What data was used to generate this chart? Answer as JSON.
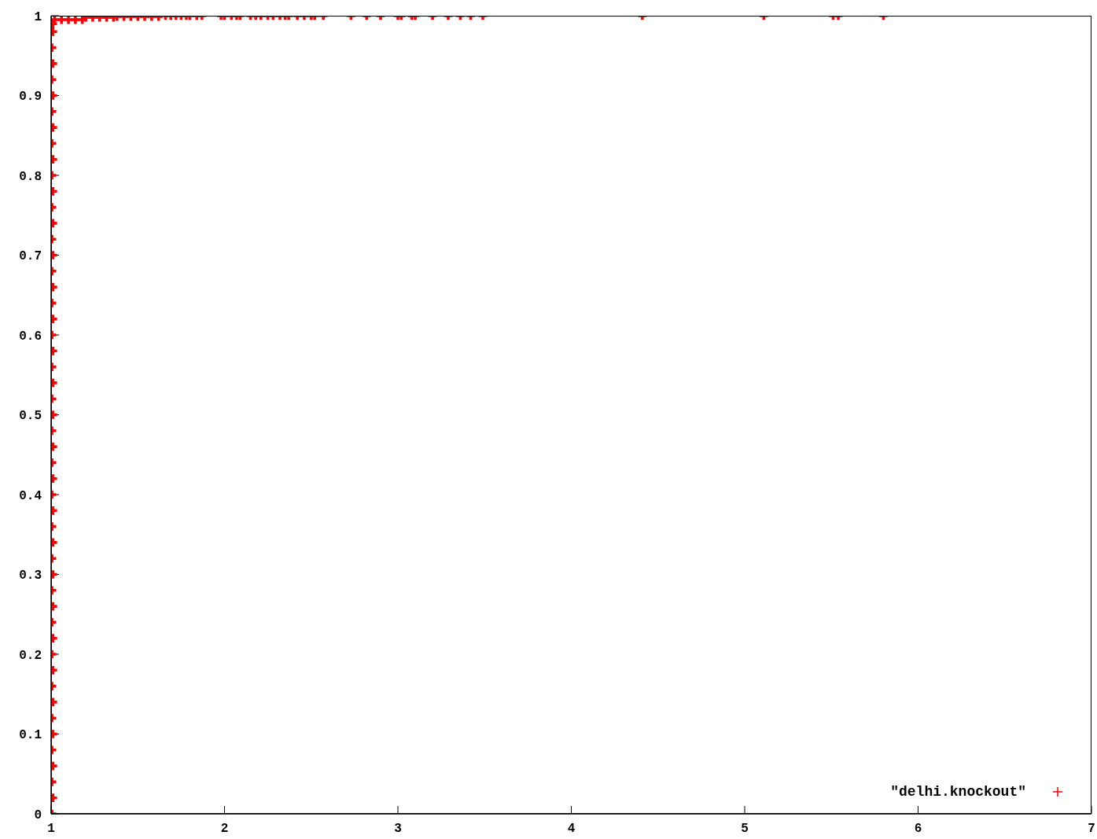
{
  "chart_data": {
    "type": "scatter",
    "xlim": [
      1,
      7
    ],
    "xticks": [
      1,
      2,
      3,
      4,
      5,
      6,
      7
    ],
    "ylim": [
      0,
      1
    ],
    "yticks": [
      0,
      0.1,
      0.2,
      0.3,
      0.4,
      0.5,
      0.6,
      0.7,
      0.8,
      0.9,
      1
    ],
    "grid": false,
    "legend": "bottom right",
    "marker": "cross",
    "series": [
      {
        "name": "\"delhi.knockout\"",
        "color": "#ff0000",
        "x": [
          1.005,
          1.01,
          1.005,
          1.01,
          1.005,
          1.01,
          1.005,
          1.01,
          1.005,
          1.01,
          1.005,
          1.01,
          1.005,
          1.01,
          1.005,
          1.01,
          1.005,
          1.01,
          1.005,
          1.01,
          1.005,
          1.01,
          1.005,
          1.01,
          1.005,
          1.01,
          1.005,
          1.01,
          1.005,
          1.01,
          1.005,
          1.01,
          1.005,
          1.01,
          1.005,
          1.01,
          1.005,
          1.01,
          1.005,
          1.01,
          1.005,
          1.01,
          1.005,
          1.01,
          1.005,
          1.01,
          1.005,
          1.01,
          1.005,
          1.01,
          1.01,
          1.02,
          1.06,
          1.1,
          1.14,
          1.18,
          1.2,
          1.24,
          1.28,
          1.32,
          1.36,
          1.38,
          1.42,
          1.46,
          1.5,
          1.54,
          1.58,
          1.62,
          1.66,
          1.69,
          1.72,
          1.75,
          1.78,
          1.8,
          1.84,
          1.87,
          1.98,
          2.0,
          2.04,
          2.07,
          2.09,
          2.15,
          2.18,
          2.21,
          2.25,
          2.28,
          2.32,
          2.35,
          2.37,
          2.42,
          2.46,
          2.5,
          2.52,
          2.57,
          2.73,
          2.82,
          2.9,
          3.0,
          3.02,
          3.08,
          3.1,
          3.2,
          3.29,
          3.36,
          3.42,
          3.49,
          4.41,
          5.11,
          5.51,
          5.54,
          5.8
        ],
        "values": [
          0,
          0.02,
          0.04,
          0.06,
          0.08,
          0.1,
          0.12,
          0.14,
          0.16,
          0.18,
          0.2,
          0.22,
          0.24,
          0.26,
          0.28,
          0.3,
          0.32,
          0.34,
          0.36,
          0.38,
          0.4,
          0.42,
          0.44,
          0.46,
          0.48,
          0.5,
          0.52,
          0.54,
          0.56,
          0.58,
          0.6,
          0.62,
          0.64,
          0.66,
          0.68,
          0.7,
          0.72,
          0.74,
          0.76,
          0.78,
          0.8,
          0.82,
          0.84,
          0.86,
          0.88,
          0.9,
          0.92,
          0.94,
          0.96,
          0.98,
          0.99,
          0.995,
          0.995,
          0.995,
          0.995,
          0.995,
          0.998,
          0.998,
          0.998,
          0.998,
          0.998,
          0.999,
          0.999,
          0.999,
          0.999,
          0.999,
          0.999,
          0.999,
          1,
          1,
          1,
          1,
          1,
          1,
          1,
          1,
          1,
          1,
          1,
          1,
          1,
          1,
          1,
          1,
          1,
          1,
          1,
          1,
          1,
          1,
          1,
          1,
          1,
          1,
          1,
          1,
          1,
          1,
          1,
          1,
          1,
          1,
          1,
          1,
          1,
          1,
          1,
          1,
          1,
          1,
          1
        ]
      }
    ]
  }
}
